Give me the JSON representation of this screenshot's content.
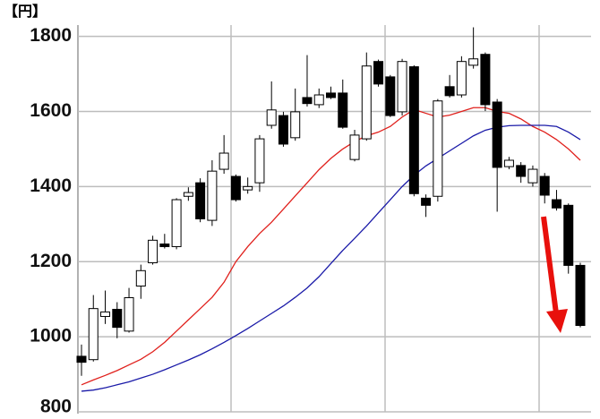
{
  "chart_data": {
    "type": "candlestick",
    "y_label": "【円】",
    "ylim": [
      800,
      1830
    ],
    "yticks": [
      800,
      1000,
      1200,
      1400,
      1600,
      1800
    ],
    "grid": true,
    "up_color": "#ffffff",
    "down_color": "#000000",
    "open": [
      948,
      939,
      1054,
      1073,
      1015,
      1135,
      1197,
      1247,
      1240,
      1374,
      1410,
      1310,
      1446,
      1427,
      1391,
      1410,
      1563,
      1589,
      1530,
      1637,
      1618,
      1649,
      1649,
      1472,
      1527,
      1733,
      1692,
      1599,
      1719,
      1369,
      1374,
      1666,
      1644,
      1723,
      1752,
      1625,
      1453,
      1456,
      1410,
      1427,
      1365,
      1350,
      1190
    ],
    "high": [
      979,
      1111,
      1123,
      1092,
      1130,
      1192,
      1269,
      1274,
      1369,
      1398,
      1422,
      1470,
      1537,
      1432,
      1424,
      1537,
      1680,
      1599,
      1661,
      1750,
      1661,
      1666,
      1685,
      1551,
      1757,
      1738,
      1697,
      1740,
      1723,
      1379,
      1633,
      1697,
      1747,
      1824,
      1757,
      1633,
      1479,
      1465,
      1456,
      1436,
      1391,
      1355,
      1197
    ],
    "low": [
      896,
      934,
      1034,
      996,
      1011,
      1101,
      1192,
      1235,
      1233,
      1362,
      1305,
      1295,
      1434,
      1360,
      1381,
      1386,
      1554,
      1506,
      1522,
      1613,
      1609,
      1633,
      1554,
      1467,
      1522,
      1666,
      1585,
      1589,
      1374,
      1319,
      1360,
      1637,
      1637,
      1714,
      1601,
      1333,
      1446,
      1410,
      1400,
      1355,
      1336,
      1168,
      1025
    ],
    "close": [
      932,
      1075,
      1066,
      1025,
      1104,
      1176,
      1257,
      1240,
      1365,
      1384,
      1314,
      1441,
      1489,
      1365,
      1400,
      1527,
      1604,
      1513,
      1599,
      1621,
      1644,
      1637,
      1558,
      1537,
      1721,
      1673,
      1589,
      1733,
      1381,
      1350,
      1628,
      1642,
      1733,
      1740,
      1618,
      1451,
      1470,
      1427,
      1446,
      1377,
      1343,
      1190,
      1030
    ],
    "series": [
      {
        "color": "#e0201c",
        "values": [
          872,
          885,
          897,
          910,
          925,
          940,
          960,
          985,
          1015,
          1045,
          1075,
          1105,
          1145,
          1200,
          1240,
          1275,
          1305,
          1340,
          1375,
          1410,
          1445,
          1475,
          1500,
          1520,
          1535,
          1545,
          1560,
          1585,
          1605,
          1595,
          1585,
          1590,
          1600,
          1610,
          1610,
          1600,
          1595,
          1580,
          1560,
          1545,
          1525,
          1500,
          1470
        ]
      },
      {
        "color": "#1a1aa8",
        "values": [
          855,
          858,
          864,
          872,
          880,
          890,
          900,
          912,
          925,
          938,
          952,
          968,
          985,
          1003,
          1022,
          1042,
          1062,
          1082,
          1105,
          1130,
          1160,
          1195,
          1230,
          1262,
          1295,
          1330,
          1365,
          1400,
          1430,
          1455,
          1475,
          1495,
          1515,
          1535,
          1550,
          1558,
          1562,
          1563,
          1563,
          1563,
          1560,
          1545,
          1525
        ]
      }
    ]
  }
}
